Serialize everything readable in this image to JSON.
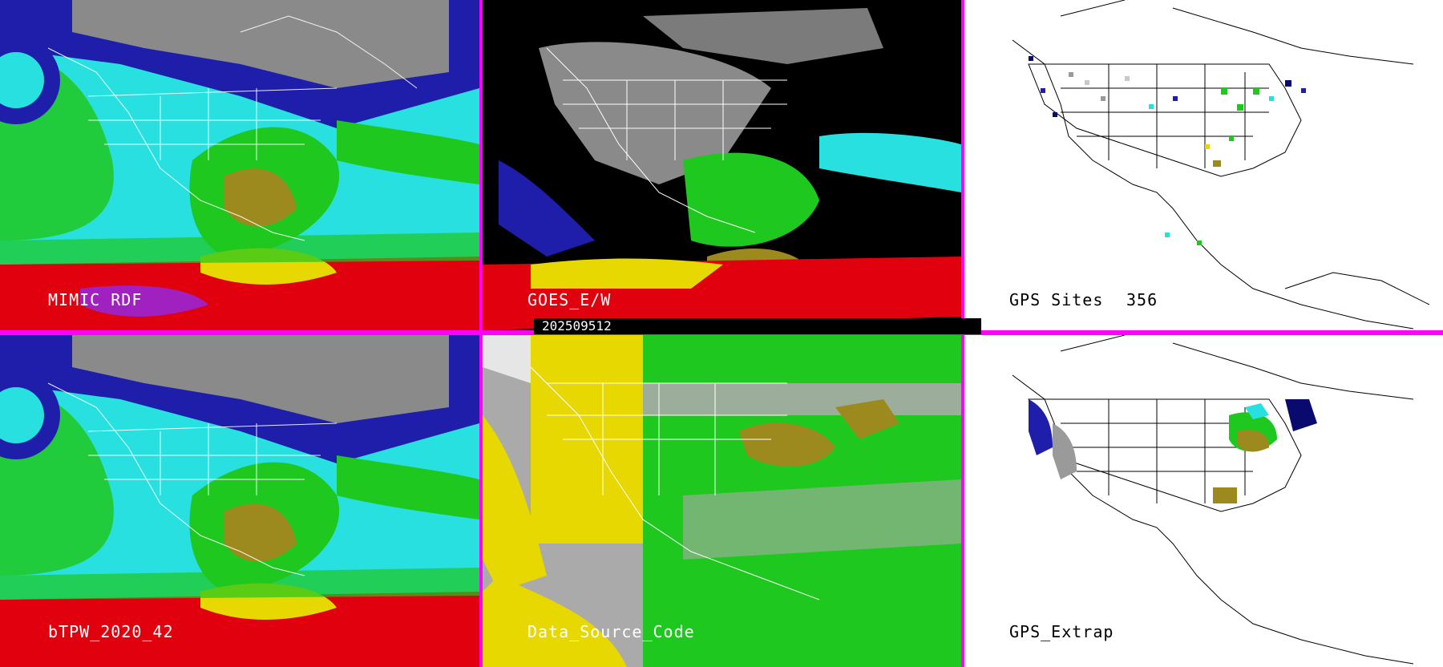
{
  "panels": [
    {
      "id": "mimic",
      "label": "MIMIC RDF",
      "theme": "tpw"
    },
    {
      "id": "goes",
      "label": "GOES_E/W",
      "theme": "goes"
    },
    {
      "id": "gps",
      "label": "GPS Sites",
      "count": "356",
      "theme": "gps"
    },
    {
      "id": "btpw",
      "label": "bTPW_2020_42",
      "theme": "tpw"
    },
    {
      "id": "dsc",
      "label": "Data_Source_Code",
      "theme": "dsc"
    },
    {
      "id": "gpsx",
      "label": "GPS_Extrap",
      "theme": "gps"
    }
  ],
  "timestamp": "202509512",
  "colors": {
    "divider": "#ff00ff",
    "red": "#e0000e",
    "yellow": "#e6d800",
    "olive": "#9c8a1e",
    "green": "#1ec81e",
    "cyan": "#28e0e0",
    "blue": "#1e1eaa",
    "navy": "#0a0a6e",
    "gray": "#9a9a9a",
    "lightgray": "#c8c8c8"
  }
}
